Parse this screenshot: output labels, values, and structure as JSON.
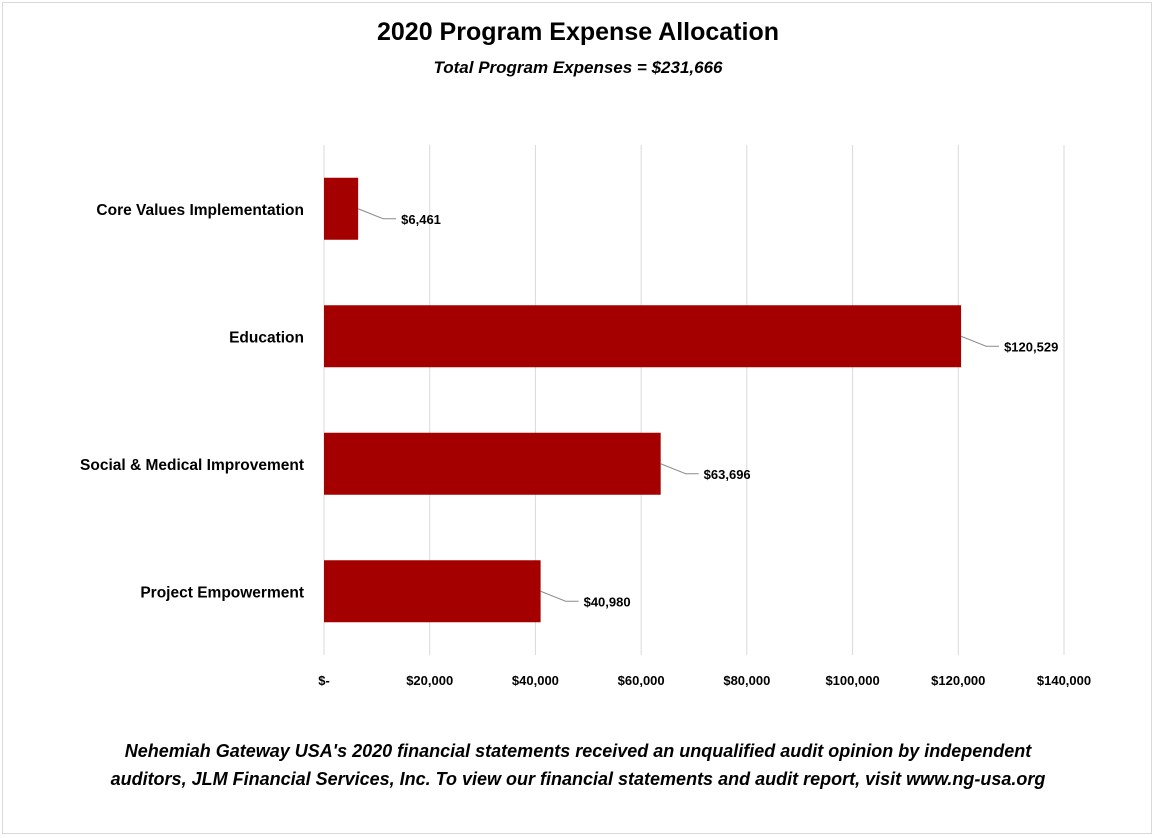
{
  "title": "2020 Program Expense Allocation",
  "subtitle": "Total Program Expenses = $231,666",
  "footnote": "Nehemiah Gateway USA's 2020 financial statements received an unqualified audit opinion by independent auditors, JLM Financial Services, Inc. To view our financial statements and audit report, visit www.ng-usa.org",
  "chart_data": {
    "type": "bar",
    "orientation": "horizontal",
    "title": "2020 Program Expense Allocation",
    "subtitle": "Total Program Expenses = $231,666",
    "categories": [
      "Core Values Implementation",
      "Education",
      "Social & Medical Improvement",
      "Project Empowerment"
    ],
    "values": [
      6461,
      120529,
      63696,
      40980
    ],
    "data_labels": [
      "$6,461",
      "$120,529",
      "$63,696",
      "$40,980"
    ],
    "xlim": [
      0,
      140000
    ],
    "x_ticks": [
      0,
      20000,
      40000,
      60000,
      80000,
      100000,
      120000,
      140000
    ],
    "x_tick_labels": [
      "$-",
      "$20,000",
      "$40,000",
      "$60,000",
      "$80,000",
      "$100,000",
      "$120,000",
      "$140,000"
    ],
    "grid": true,
    "legend": "none",
    "bar_color": "#a50000",
    "grid_color": "#d9d9d9",
    "leader_color": "#8c8c8c"
  }
}
